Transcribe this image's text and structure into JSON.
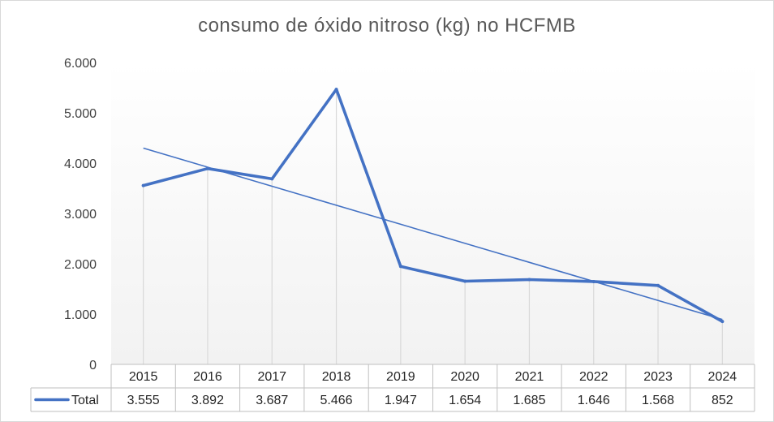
{
  "chart_data": {
    "type": "line",
    "title": "consumo  de óxido nitroso (kg) no HCFMB",
    "categories": [
      "2015",
      "2016",
      "2017",
      "2018",
      "2019",
      "2020",
      "2021",
      "2022",
      "2023",
      "2024"
    ],
    "series": [
      {
        "name": "Total",
        "values": [
          3555,
          3892,
          3687,
          5466,
          1947,
          1654,
          1685,
          1646,
          1568,
          852
        ],
        "labels": [
          "3.555",
          "3.892",
          "3.687",
          "5.466",
          "1.947",
          "1.654",
          "1.685",
          "1.646",
          "1.568",
          "852"
        ],
        "color": "#4472c4"
      }
    ],
    "trendline": {
      "type": "linear",
      "color": "#4472c4"
    },
    "ylim": [
      0,
      6000
    ],
    "yticks": [
      0,
      1000,
      2000,
      3000,
      4000,
      5000,
      6000
    ],
    "ytick_labels": [
      "0",
      "1.000",
      "2.000",
      "3.000",
      "4.000",
      "5.000",
      "6.000"
    ],
    "xlabel": "",
    "ylabel": "",
    "grid": "vertical",
    "legend": "data-table",
    "data_table": true
  }
}
